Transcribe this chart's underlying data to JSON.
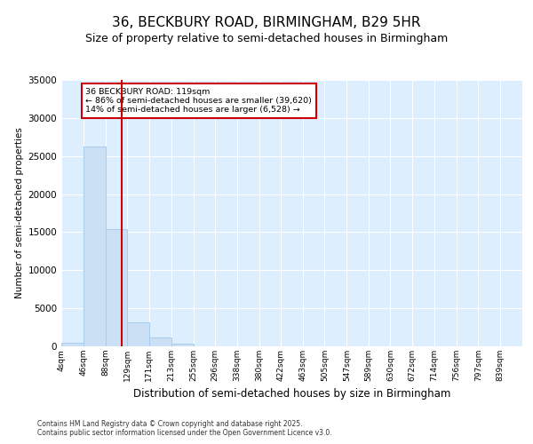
{
  "title1": "36, BECKBURY ROAD, BIRMINGHAM, B29 5HR",
  "title2": "Size of property relative to semi-detached houses in Birmingham",
  "xlabel": "Distribution of semi-detached houses by size in Birmingham",
  "ylabel": "Number of semi-detached properties",
  "footer": "Contains HM Land Registry data © Crown copyright and database right 2025.\nContains public sector information licensed under the Open Government Licence v3.0.",
  "bin_labels": [
    "4sqm",
    "46sqm",
    "88sqm",
    "129sqm",
    "171sqm",
    "213sqm",
    "255sqm",
    "296sqm",
    "338sqm",
    "380sqm",
    "422sqm",
    "463sqm",
    "505sqm",
    "547sqm",
    "589sqm",
    "630sqm",
    "672sqm",
    "714sqm",
    "756sqm",
    "797sqm",
    "839sqm"
  ],
  "bin_edges": [
    4,
    46,
    88,
    129,
    171,
    213,
    255,
    296,
    338,
    380,
    422,
    463,
    505,
    547,
    589,
    630,
    672,
    714,
    756,
    797,
    839
  ],
  "bar_heights": [
    500,
    26200,
    15400,
    3150,
    1200,
    400,
    50,
    0,
    0,
    0,
    0,
    0,
    0,
    0,
    0,
    0,
    0,
    0,
    0,
    0
  ],
  "bar_color": "#cce0f5",
  "bar_edgecolor": "#aaccee",
  "vline_x": 119,
  "vline_color": "#cc0000",
  "annotation_title": "36 BECKBURY ROAD: 119sqm",
  "annotation_line1": "← 86% of semi-detached houses are smaller (39,620)",
  "annotation_line2": "14% of semi-detached houses are larger (6,528) →",
  "annotation_box_facecolor": "#ffffff",
  "annotation_box_edgecolor": "#cc0000",
  "ylim": [
    0,
    35000
  ],
  "yticks": [
    0,
    5000,
    10000,
    15000,
    20000,
    25000,
    30000,
    35000
  ],
  "fig_bg_color": "#ffffff",
  "plot_bg_color": "#ddeeff",
  "grid_color": "#ffffff",
  "title1_fontsize": 11,
  "title2_fontsize": 9
}
